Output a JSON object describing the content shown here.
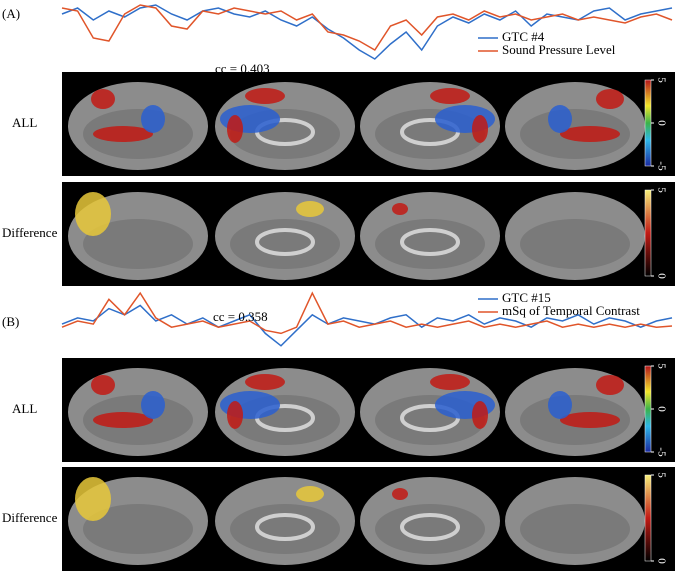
{
  "panels": [
    {
      "label": "(A)",
      "cc": "cc = 0.403",
      "series": [
        {
          "name": "GTC #4",
          "color": "#2f6fc9",
          "values": [
            0.8,
            0.9,
            0.7,
            0.85,
            0.75,
            0.9,
            0.95,
            0.8,
            0.7,
            0.85,
            0.9,
            0.8,
            0.75,
            0.85,
            0.7,
            0.6,
            0.75,
            0.55,
            0.4,
            0.2,
            0.05,
            0.3,
            0.5,
            0.2,
            0.6,
            0.75,
            0.65,
            0.8,
            0.7,
            0.85,
            0.6,
            0.8,
            0.75,
            0.7,
            0.85,
            0.9,
            0.7,
            0.8,
            0.85,
            0.9
          ]
        },
        {
          "name": "Sound Pressure Level",
          "color": "#e0552a",
          "values": [
            0.9,
            0.85,
            0.4,
            0.35,
            0.8,
            0.95,
            0.9,
            0.6,
            0.55,
            0.85,
            0.8,
            0.9,
            0.85,
            0.8,
            0.85,
            0.7,
            0.8,
            0.5,
            0.45,
            0.35,
            0.2,
            0.6,
            0.7,
            0.45,
            0.75,
            0.8,
            0.7,
            0.85,
            0.75,
            0.8,
            0.7,
            0.75,
            0.8,
            0.7,
            0.75,
            0.7,
            0.65,
            0.75,
            0.8,
            0.7
          ]
        }
      ],
      "rows": [
        {
          "label": "ALL",
          "colorbar_ticks": [
            5,
            0,
            -5
          ]
        },
        {
          "label": "Difference",
          "colorbar_ticks": [
            5,
            0
          ]
        }
      ]
    },
    {
      "label": "(B)",
      "cc": "cc = 0.358",
      "series": [
        {
          "name": "GTC #15",
          "color": "#2f6fc9",
          "values": [
            0.45,
            0.55,
            0.5,
            0.7,
            0.6,
            0.75,
            0.5,
            0.6,
            0.45,
            0.55,
            0.4,
            0.5,
            0.6,
            0.3,
            0.1,
            0.35,
            0.6,
            0.45,
            0.55,
            0.5,
            0.45,
            0.55,
            0.6,
            0.4,
            0.55,
            0.5,
            0.6,
            0.45,
            0.55,
            0.5,
            0.4,
            0.55,
            0.5,
            0.6,
            0.45,
            0.55,
            0.5,
            0.4,
            0.5,
            0.55
          ]
        },
        {
          "name": "mSq of Temporal Contrast",
          "color": "#e0552a",
          "values": [
            0.4,
            0.5,
            0.45,
            0.85,
            0.6,
            0.95,
            0.55,
            0.4,
            0.45,
            0.5,
            0.4,
            0.45,
            0.5,
            0.35,
            0.3,
            0.4,
            0.95,
            0.45,
            0.5,
            0.4,
            0.45,
            0.5,
            0.4,
            0.45,
            0.4,
            0.45,
            0.5,
            0.4,
            0.45,
            0.4,
            0.45,
            0.5,
            0.4,
            0.45,
            0.4,
            0.45,
            0.4,
            0.45,
            0.4,
            0.42
          ]
        }
      ],
      "rows": [
        {
          "label": "ALL",
          "colorbar_ticks": [
            5,
            0,
            -5
          ]
        },
        {
          "label": "Difference",
          "colorbar_ticks": [
            5,
            0
          ]
        }
      ]
    }
  ]
}
